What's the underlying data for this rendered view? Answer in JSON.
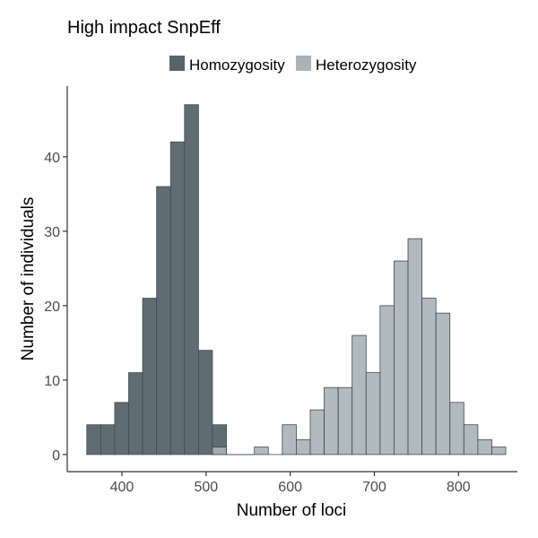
{
  "chart_data": {
    "type": "bar",
    "title": "High impact SnpEff",
    "xlabel": "Number of loci",
    "ylabel": "Number of individuals",
    "xlim": [
      335,
      870
    ],
    "ylim": [
      -2.3,
      49.5
    ],
    "x_ticks": [
      400,
      500,
      600,
      700,
      800
    ],
    "y_ticks": [
      0,
      10,
      20,
      30,
      40
    ],
    "bin_width": 16.6,
    "grid": false,
    "legend": "top",
    "series": [
      {
        "name": "Homozygosity",
        "color": "#56646b",
        "bins": [
          {
            "x": 366.5,
            "count": 4
          },
          {
            "x": 383.1,
            "count": 4
          },
          {
            "x": 399.7,
            "count": 7
          },
          {
            "x": 416.3,
            "count": 11
          },
          {
            "x": 432.9,
            "count": 21
          },
          {
            "x": 449.5,
            "count": 36
          },
          {
            "x": 466.1,
            "count": 42
          },
          {
            "x": 482.7,
            "count": 47
          },
          {
            "x": 499.3,
            "count": 14
          },
          {
            "x": 515.9,
            "count": 4
          },
          {
            "x": 532.5,
            "count": 0
          },
          {
            "x": 549.1,
            "count": 0
          }
        ]
      },
      {
        "name": "Heterozygosity",
        "color": "#a9b3b8",
        "bins": [
          {
            "x": 515.9,
            "count": 1
          },
          {
            "x": 532.5,
            "count": 0
          },
          {
            "x": 549.1,
            "count": 0
          },
          {
            "x": 565.7,
            "count": 1
          },
          {
            "x": 582.3,
            "count": 0
          },
          {
            "x": 598.9,
            "count": 4
          },
          {
            "x": 615.5,
            "count": 2
          },
          {
            "x": 632.1,
            "count": 6
          },
          {
            "x": 648.7,
            "count": 9
          },
          {
            "x": 665.3,
            "count": 9
          },
          {
            "x": 681.9,
            "count": 16
          },
          {
            "x": 698.5,
            "count": 11
          },
          {
            "x": 715.1,
            "count": 20
          },
          {
            "x": 731.7,
            "count": 26
          },
          {
            "x": 748.3,
            "count": 29
          },
          {
            "x": 764.9,
            "count": 21
          },
          {
            "x": 781.5,
            "count": 19
          },
          {
            "x": 798.1,
            "count": 7
          },
          {
            "x": 814.7,
            "count": 4
          },
          {
            "x": 831.3,
            "count": 2
          },
          {
            "x": 847.9,
            "count": 1
          }
        ]
      }
    ]
  }
}
